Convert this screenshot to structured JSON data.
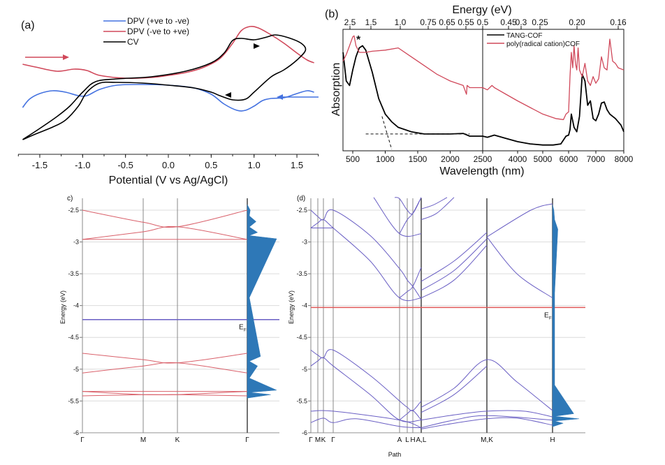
{
  "chart_data": [
    {
      "panel": "a",
      "type": "line",
      "panel_label": "(a)",
      "xlabel": "Potential (V vs Ag/AgCl)",
      "ylabel": "",
      "xlim": [
        -1.75,
        1.75
      ],
      "xticks": [
        "-1.5",
        "-1.0",
        "-0.5",
        "0.0",
        "0.5",
        "1.0",
        "1.5"
      ],
      "xtick_values": [
        -1.5,
        -1.0,
        -0.5,
        0.0,
        0.5,
        1.0,
        1.5
      ],
      "ylim": [
        -1.0,
        1.0
      ],
      "legend_position": "top-center",
      "series": [
        {
          "name": "DPV (+ve to -ve)",
          "color": "#4472e0",
          "x": [
            -1.7,
            -1.62,
            -1.5,
            -1.35,
            -1.2,
            -1.05,
            -0.95,
            -0.8,
            -0.6,
            -0.3,
            0.0,
            0.3,
            0.5,
            0.65,
            0.8,
            0.9,
            1.0,
            1.1,
            1.2,
            1.35,
            1.5,
            1.62,
            1.7
          ],
          "y": [
            -0.32,
            -0.2,
            -0.12,
            -0.08,
            -0.1,
            -0.15,
            -0.15,
            -0.06,
            0.0,
            0.01,
            0.0,
            -0.04,
            -0.13,
            -0.27,
            -0.36,
            -0.36,
            -0.3,
            -0.22,
            -0.19,
            -0.18,
            -0.12,
            -0.08,
            -0.1
          ]
        },
        {
          "name": "DPV (-ve to +ve)",
          "color": "#d0485a",
          "x": [
            -1.7,
            -1.55,
            -1.3,
            -1.1,
            -0.95,
            -0.8,
            -0.5,
            -0.2,
            0.0,
            0.2,
            0.4,
            0.6,
            0.75,
            0.85,
            0.95,
            1.05,
            1.2,
            1.35,
            1.5,
            1.62,
            1.7
          ],
          "y": [
            0.3,
            0.26,
            0.2,
            0.23,
            0.21,
            0.14,
            0.1,
            0.11,
            0.14,
            0.18,
            0.25,
            0.38,
            0.6,
            0.78,
            0.84,
            0.82,
            0.72,
            0.6,
            0.46,
            0.36,
            0.32
          ]
        },
        {
          "name": "CV",
          "color": "#000000",
          "x": [
            -1.7,
            -1.5,
            -1.3,
            -1.15,
            -1.0,
            -0.85,
            -0.6,
            -0.2,
            0.2,
            0.5,
            0.65,
            0.75,
            0.85,
            1.0,
            1.15,
            1.25,
            1.4,
            1.55,
            1.6,
            1.5,
            1.35,
            1.2,
            1.0,
            0.9,
            0.75,
            0.6,
            0.5,
            0.3,
            0.0,
            -0.3,
            -0.6,
            -0.8,
            -0.95,
            -1.05,
            -1.2,
            -1.35,
            -1.55,
            -1.7
          ],
          "y": [
            -0.78,
            -0.62,
            -0.45,
            -0.3,
            -0.1,
            0.05,
            0.09,
            0.12,
            0.2,
            0.32,
            0.46,
            0.64,
            0.67,
            0.65,
            0.69,
            0.72,
            0.68,
            0.6,
            0.5,
            0.36,
            0.22,
            0.12,
            -0.1,
            -0.2,
            -0.21,
            -0.15,
            -0.1,
            -0.04,
            0.0,
            0.03,
            0.04,
            0.03,
            -0.1,
            -0.3,
            -0.5,
            -0.6,
            -0.7,
            -0.78
          ]
        }
      ],
      "annotations": [
        {
          "type": "arrow",
          "direction": "right",
          "color": "#d0485a",
          "near": "top-left"
        },
        {
          "type": "arrow",
          "direction": "left",
          "color": "#4472e0",
          "near": "right"
        },
        {
          "type": "arrow-on-curve",
          "series": "CV",
          "direction": "right",
          "at_x": 0.95
        },
        {
          "type": "arrow-on-curve",
          "series": "CV",
          "direction": "left",
          "at_x": 0.7
        }
      ]
    },
    {
      "panel": "b",
      "type": "line",
      "panel_label": "(b)",
      "title_top_axis": "Energy (eV)",
      "xlabel": "Wavelength (nm)",
      "ylabel": "Absorption",
      "xlim": [
        350,
        8000
      ],
      "axis_break_at": 2500,
      "xticks": [
        "500",
        "1000",
        "1500",
        "2000",
        "2500",
        "4000",
        "5000",
        "6000",
        "7000",
        "8000"
      ],
      "top_ticks": [
        "2.5",
        "1.5",
        "1.0",
        "0.75",
        "0.65",
        "0.55",
        "0.5",
        "0.45",
        "0.3",
        "0.25",
        "0.20",
        "0.16"
      ],
      "legend_position": "top-right",
      "annotation_star": "*",
      "series": [
        {
          "name": "TANG-COF",
          "color": "#000000",
          "x": [
            350,
            400,
            450,
            500,
            550,
            600,
            650,
            700,
            800,
            900,
            1000,
            1100,
            1200,
            1400,
            1600,
            1800,
            2000,
            2200,
            2300,
            2400,
            2500,
            2700,
            3000,
            3500,
            4000,
            4500,
            5000,
            5400,
            5700,
            5900,
            6000,
            6050,
            6100,
            6200,
            6300,
            6400,
            6500,
            6600,
            6700,
            6800,
            6900,
            7000,
            7100,
            7200,
            7300,
            7400,
            7500,
            7700,
            7900,
            8000
          ],
          "y": [
            0.88,
            0.62,
            0.58,
            0.72,
            0.84,
            0.92,
            0.94,
            0.9,
            0.7,
            0.46,
            0.32,
            0.25,
            0.2,
            0.16,
            0.14,
            0.14,
            0.14,
            0.145,
            0.12,
            0.12,
            0.12,
            0.11,
            0.13,
            0.1,
            0.07,
            0.05,
            0.04,
            0.04,
            0.05,
            0.12,
            0.13,
            0.18,
            0.32,
            0.2,
            0.16,
            0.3,
            0.68,
            0.62,
            0.4,
            0.44,
            0.28,
            0.26,
            0.32,
            0.42,
            0.43,
            0.36,
            0.32,
            0.28,
            0.22,
            0.16
          ]
        },
        {
          "name": "poly(radical cation)COF",
          "color": "#d0485a",
          "x": [
            350,
            400,
            450,
            500,
            520,
            550,
            600,
            650,
            700,
            800,
            1000,
            1200,
            1400,
            1600,
            1800,
            2000,
            2200,
            2250,
            2260,
            2300,
            2350,
            2400,
            2500,
            2700,
            2900,
            3000,
            3500,
            4000,
            4500,
            5000,
            5500,
            5800,
            5900,
            6000,
            6050,
            6100,
            6150,
            6200,
            6250,
            6300,
            6350,
            6400,
            6500,
            6600,
            6700,
            6800,
            6900,
            7000,
            7100,
            7200,
            7300,
            7400,
            7500,
            7600,
            7700,
            7800,
            8000
          ],
          "y": [
            0.8,
            0.86,
            0.94,
            1.02,
            1.03,
            0.94,
            0.88,
            0.88,
            0.88,
            0.89,
            0.9,
            0.92,
            0.84,
            0.76,
            0.68,
            0.62,
            0.58,
            0.5,
            0.58,
            0.56,
            0.56,
            0.56,
            0.56,
            0.54,
            0.58,
            0.56,
            0.5,
            0.44,
            0.38,
            0.32,
            0.28,
            0.27,
            0.32,
            0.34,
            0.66,
            0.88,
            0.74,
            0.94,
            0.78,
            0.72,
            0.92,
            0.72,
            0.66,
            0.78,
            0.62,
            0.58,
            0.66,
            0.6,
            0.64,
            0.84,
            0.74,
            0.72,
            1.0,
            0.8,
            0.78,
            0.74,
            0.72
          ]
        }
      ],
      "dashed_guides": [
        {
          "from": [
            700,
            0.14
          ],
          "to": [
            2300,
            0.14
          ]
        },
        {
          "from": [
            950,
            0.3
          ],
          "to": [
            1100,
            0.0
          ]
        }
      ]
    },
    {
      "panel": "c",
      "type": "line",
      "panel_label": "c)",
      "ylabel": "Energy (eV)",
      "ylim": [
        -6,
        -2.3
      ],
      "yticks": [
        "-2.5",
        "-3",
        "-3.5",
        "-4",
        "-4.5",
        "-5",
        "-5.5",
        "-6"
      ],
      "ytick_values": [
        -2.5,
        -3,
        -3.5,
        -4,
        -4.5,
        -5,
        -5.5,
        -6
      ],
      "kpath": [
        "Γ",
        "M",
        "K",
        "Γ"
      ],
      "fermi_level": {
        "label": "E",
        "subscript": "F",
        "energy": -4.22,
        "color": "#6a5fc4"
      },
      "band_color": "#d9606a",
      "dos_color": "#2e78b7",
      "bands": [
        [
          -2.5,
          -2.69,
          -2.76,
          -2.5
        ],
        [
          -2.96,
          -2.84,
          -2.76,
          -2.96
        ],
        [
          -2.96,
          -2.96,
          -2.96,
          -2.96
        ],
        [
          -4.75,
          -4.85,
          -4.9,
          -4.75
        ],
        [
          -5.06,
          -4.95,
          -4.9,
          -5.06
        ],
        [
          -5.35,
          -5.35,
          -5.35,
          -5.35
        ],
        [
          -5.35,
          -5.4,
          -5.4,
          -5.42
        ],
        [
          -5.42,
          -5.4,
          -5.4,
          -5.35
        ]
      ],
      "dos_peaks": [
        [
          -2.5,
          0.1
        ],
        [
          -2.68,
          0.3
        ],
        [
          -2.85,
          0.35
        ],
        [
          -2.95,
          1.0
        ],
        [
          -4.8,
          0.45
        ],
        [
          -4.95,
          0.35
        ],
        [
          -5.33,
          1.0
        ],
        [
          -5.4,
          0.8
        ]
      ]
    },
    {
      "panel": "d",
      "type": "line",
      "panel_label": "(d)",
      "ylabel": "Energy (eV)",
      "xlabel": "Path",
      "ylim": [
        -6,
        -2.3
      ],
      "yticks": [
        "-2.5",
        "-3",
        "-3.5",
        "-4",
        "-4.5",
        "-5",
        "-5.5",
        "-6"
      ],
      "ytick_values": [
        -2.5,
        -3,
        -3.5,
        -4,
        -4.5,
        -5,
        -5.5,
        -6
      ],
      "kpath": [
        "Γ",
        "M",
        "K",
        "Γ",
        "A",
        "L",
        "H",
        "A,L",
        "M,K",
        "H"
      ],
      "fermi_level": {
        "label": "E",
        "subscript": "F",
        "energy": -4.03,
        "color": "#e05a5a"
      },
      "band_color": "#6a5fc4",
      "dos_color": "#2e78b7",
      "dos_peaks": [
        [
          -2.5,
          0.05
        ],
        [
          -2.8,
          0.2
        ],
        [
          -4.8,
          0.08
        ],
        [
          -5.7,
          0.8
        ],
        [
          -5.78,
          1.0
        ],
        [
          -5.85,
          0.4
        ]
      ]
    }
  ]
}
